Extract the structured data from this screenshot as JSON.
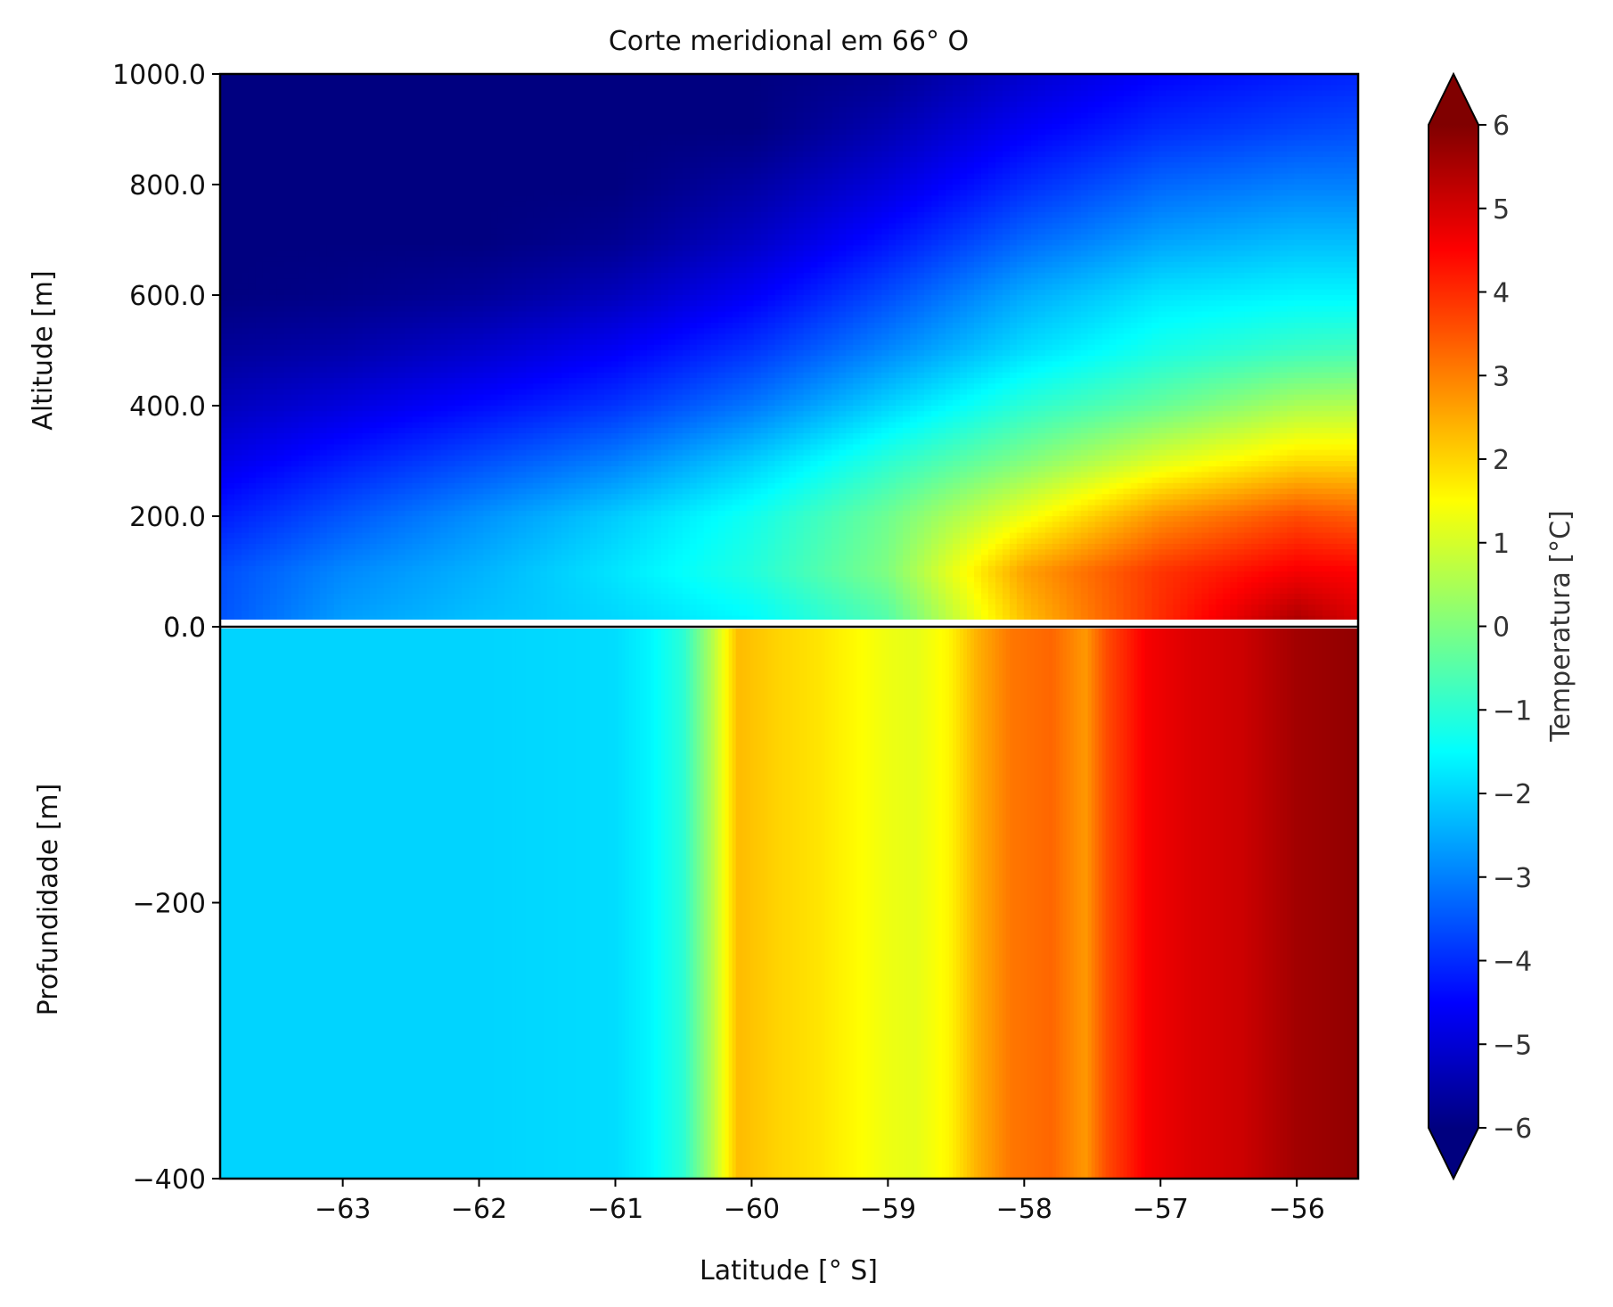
{
  "chart_data": {
    "type": "heatmap",
    "title": "Corte meridional em 66° O",
    "xlabel": "Latitude [° S]",
    "colorbar_label": "Temperatura [°C]",
    "colormap": "jet",
    "xlim": [
      -63.9,
      -55.55
    ],
    "x_ticks": [
      -63,
      -62,
      -61,
      -60,
      -59,
      -58,
      -57,
      -56
    ],
    "x_tick_labels": [
      "−63",
      "−62",
      "−61",
      "−60",
      "−59",
      "−58",
      "−57",
      "−56"
    ],
    "colorbar": {
      "vmin": -6,
      "vmax": 6,
      "extend": "both",
      "ticks": [
        6,
        5,
        4,
        3,
        2,
        1,
        0,
        -1,
        -2,
        -3,
        -4,
        -5,
        -6
      ],
      "tick_labels": [
        "6",
        "5",
        "4",
        "3",
        "2",
        "1",
        "0",
        "−1",
        "−2",
        "−3",
        "−4",
        "−5",
        "−6"
      ]
    },
    "panels": [
      {
        "name": "atmosphere",
        "ylabel": "Altitude [m]",
        "ylim": [
          0,
          1000
        ],
        "y_ticks": [
          1000,
          800,
          600,
          400,
          200,
          0
        ],
        "y_tick_labels": [
          "1000.0",
          "800.0",
          "600.0",
          "400.0",
          "200.0",
          "0.0"
        ],
        "latitudes": [
          -63.9,
          -63.0,
          -62.0,
          -61.0,
          -60.0,
          -59.0,
          -58.0,
          -57.0,
          -56.0,
          -55.55
        ],
        "altitudes": [
          0,
          100,
          200,
          300,
          400,
          500,
          600,
          700,
          800,
          900,
          1000
        ],
        "temperature": [
          [
            -3.5,
            -2.6,
            -2.2,
            -2.0,
            -1.6,
            -0.6,
            2.2,
            4.0,
            5.6,
            5.0
          ],
          [
            -3.6,
            -2.9,
            -2.4,
            -1.8,
            -1.1,
            0.0,
            2.6,
            3.9,
            4.6,
            4.5
          ],
          [
            -4.2,
            -3.5,
            -2.8,
            -2.1,
            -1.3,
            -0.2,
            1.3,
            2.8,
            3.6,
            3.4
          ],
          [
            -4.8,
            -4.2,
            -3.6,
            -3.0,
            -2.1,
            -1.0,
            0.0,
            1.1,
            1.9,
            1.9
          ],
          [
            -5.3,
            -4.9,
            -4.4,
            -3.9,
            -3.1,
            -2.0,
            -1.0,
            -0.3,
            0.5,
            0.6
          ],
          [
            -5.7,
            -5.5,
            -5.1,
            -4.6,
            -3.9,
            -2.9,
            -1.9,
            -1.2,
            -0.8,
            -0.7
          ],
          [
            -6.0,
            -5.9,
            -5.7,
            -5.3,
            -4.6,
            -3.6,
            -2.5,
            -1.8,
            -1.6,
            -1.6
          ],
          [
            -6.0,
            -6.0,
            -6.0,
            -5.8,
            -5.2,
            -4.3,
            -3.3,
            -2.6,
            -2.3,
            -2.3
          ],
          [
            -6.0,
            -6.0,
            -6.0,
            -6.0,
            -5.6,
            -4.9,
            -4.0,
            -3.3,
            -3.0,
            -3.0
          ],
          [
            -6.0,
            -6.0,
            -6.0,
            -6.0,
            -6.0,
            -5.4,
            -4.6,
            -4.0,
            -3.7,
            -3.6
          ],
          [
            -6.0,
            -6.0,
            -6.0,
            -6.0,
            -6.0,
            -5.8,
            -5.1,
            -4.5,
            -4.2,
            -4.1
          ]
        ]
      },
      {
        "name": "ocean",
        "ylabel": "Profundidade [m]",
        "ylim": [
          -400,
          0
        ],
        "y_ticks": [
          0,
          -200,
          -400
        ],
        "y_tick_labels": [
          "0.0",
          "−200",
          "−400"
        ],
        "latitudes": [
          -63.9,
          -63.0,
          -62.0,
          -61.0,
          -60.75,
          -60.5,
          -60.3,
          -60.1,
          -59.8,
          -59.5,
          -59.3,
          -59.0,
          -58.8,
          -58.55,
          -58.35,
          -58.1,
          -57.8,
          -57.55,
          -57.4,
          -57.1,
          -56.8,
          -56.4,
          -56.0,
          -55.55
        ],
        "temperature": [
          -2.0,
          -2.0,
          -2.0,
          -1.9,
          -1.6,
          -1.0,
          0.5,
          2.3,
          2.0,
          1.8,
          1.6,
          1.3,
          1.2,
          1.6,
          2.4,
          3.1,
          3.3,
          2.7,
          3.6,
          4.6,
          4.9,
          5.1,
          5.6,
          5.8
        ]
      }
    ]
  }
}
